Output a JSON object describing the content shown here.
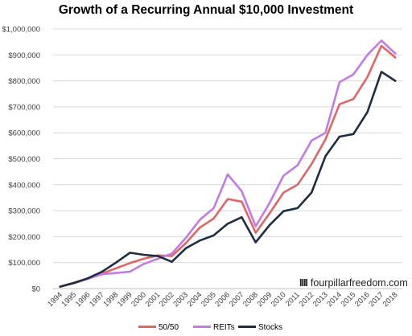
{
  "chart_data": {
    "type": "line",
    "title": "Growth of a Recurring Annual $10,000 Investment",
    "xlabel": "",
    "ylabel": "",
    "x": [
      "1994",
      "1995",
      "1996",
      "1997",
      "1998",
      "1999",
      "2000",
      "2001",
      "2002",
      "2003",
      "2004",
      "2005",
      "2006",
      "2007",
      "2008",
      "2009",
      "2010",
      "2011",
      "2012",
      "2013",
      "2014",
      "2015",
      "2016",
      "2017",
      "2018"
    ],
    "y_ticks": [
      "$0",
      "$100,000",
      "$200,000",
      "$300,000",
      "$400,000",
      "$500,000",
      "$600,000",
      "$700,000",
      "$800,000",
      "$900,000",
      "$1,000,000"
    ],
    "ylim": [
      0,
      1000000
    ],
    "grid": true,
    "legend_position": "bottom",
    "series": [
      {
        "name": "50/50",
        "color": "#e06666",
        "values": [
          8000,
          22000,
          38000,
          58000,
          78000,
          98000,
          115000,
          128000,
          125000,
          175000,
          235000,
          270000,
          345000,
          335000,
          215000,
          290000,
          370000,
          400000,
          480000,
          575000,
          710000,
          730000,
          815000,
          935000,
          890000
        ]
      },
      {
        "name": "REITs",
        "color": "#c27be6",
        "values": [
          8000,
          20000,
          38000,
          55000,
          60000,
          65000,
          95000,
          115000,
          135000,
          195000,
          265000,
          310000,
          440000,
          375000,
          240000,
          330000,
          435000,
          475000,
          570000,
          600000,
          795000,
          825000,
          900000,
          955000,
          905000
        ]
      },
      {
        "name": "Stocks",
        "color": "#1f2d44",
        "values": [
          7000,
          22000,
          40000,
          65000,
          100000,
          138000,
          130000,
          125000,
          103000,
          155000,
          185000,
          205000,
          250000,
          275000,
          178000,
          245000,
          298000,
          310000,
          370000,
          510000,
          585000,
          595000,
          680000,
          835000,
          800000
        ]
      }
    ]
  },
  "watermark": {
    "bars": "IIII",
    "text": "fourpillarfreedom.com"
  }
}
